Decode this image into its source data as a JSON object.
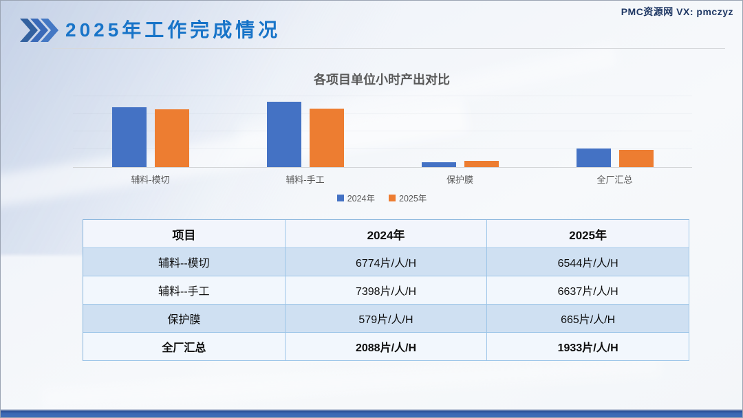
{
  "watermark": {
    "text": "PMC资源网 VX: pmczyz"
  },
  "header": {
    "title": "2025年工作完成情况",
    "icon": "triple-chevron-icon"
  },
  "chart_data": {
    "type": "bar",
    "title": "各项目单位小时产出对比",
    "categories": [
      "辅料-模切",
      "辅料-手工",
      "保护膜",
      "全厂汇总"
    ],
    "series": [
      {
        "name": "2024年",
        "color": "#4472C4",
        "values": [
          6774,
          7398,
          579,
          2088
        ]
      },
      {
        "name": "2025年",
        "color": "#ED7D31",
        "values": [
          6544,
          6637,
          665,
          1933
        ]
      }
    ],
    "xlabel": "",
    "ylabel": "",
    "ylim": [
      0,
      8000
    ],
    "gridline_step": 2000,
    "grid": true,
    "legend_position": "bottom",
    "unit": "片/人/H"
  },
  "table": {
    "headers": [
      "项目",
      "2024年",
      "2025年"
    ],
    "rows": [
      [
        "辅料--模切",
        "6774片/人/H",
        "6544片/人/H"
      ],
      [
        "辅料--手工",
        "7398片/人/H",
        "6637片/人/H"
      ],
      [
        "保护膜",
        "579片/人/H",
        "665片/人/H"
      ],
      [
        "全厂汇总",
        "2088片/人/H",
        "1933片/人/H"
      ]
    ]
  },
  "colors": {
    "title_blue": "#1874C8",
    "chevron_blue": "#3A68B8",
    "watermark_navy": "#1F3864",
    "series_2024": "#4472C4",
    "series_2025": "#ED7D31",
    "table_border": "#8FB8E0",
    "table_row_alt": "#CFE0F2",
    "footer_bar": "#3A67B2"
  }
}
